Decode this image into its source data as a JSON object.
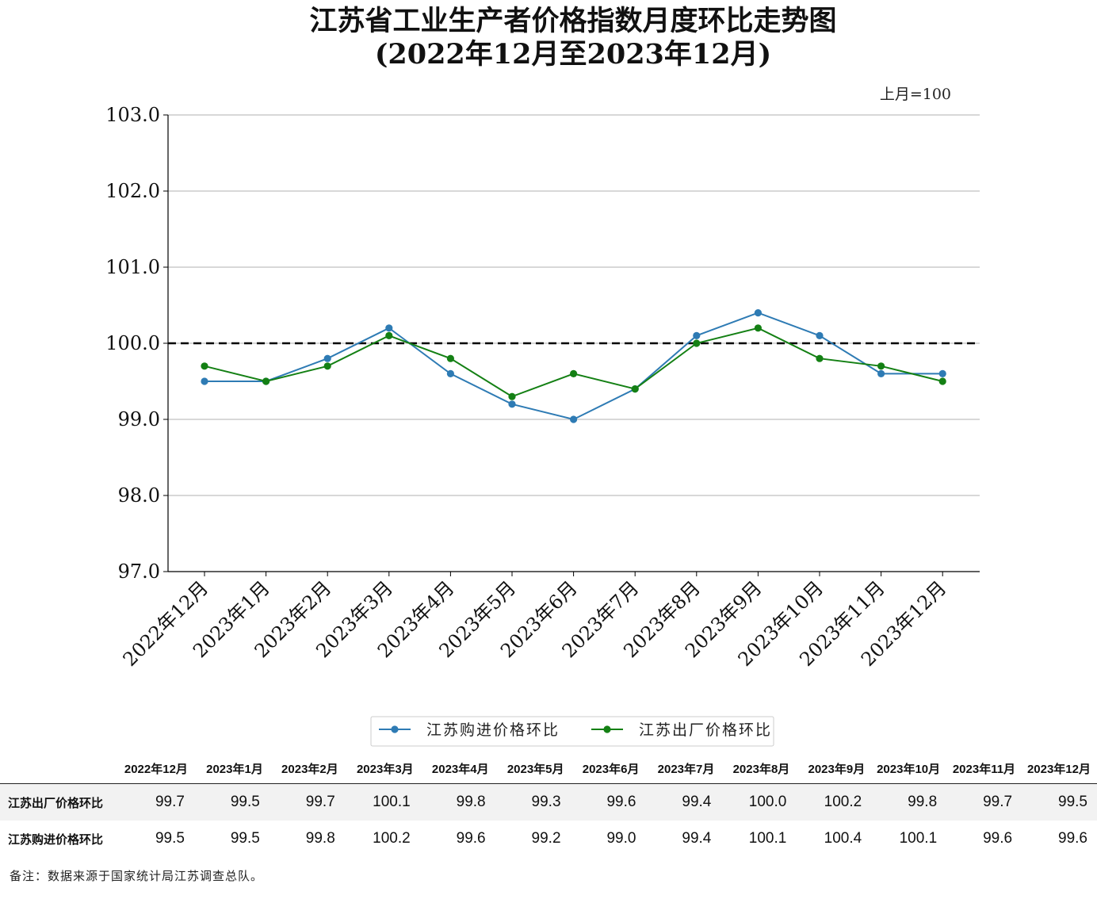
{
  "chart_data": {
    "type": "line",
    "title": "江苏省工业生产者价格指数月度环比走势图",
    "subtitle": "(2022年12月至2023年12月)",
    "unit_note": "上月=100",
    "ylim": [
      97.0,
      103.0
    ],
    "yticks": [
      "97.0",
      "98.0",
      "99.0",
      "100.0",
      "101.0",
      "102.0",
      "103.0"
    ],
    "grid": true,
    "reference_line": 100.0,
    "legend_position": "bottom-center",
    "categories": [
      "2022年12月",
      "2023年1月",
      "2023年2月",
      "2023年3月",
      "2023年4月",
      "2023年5月",
      "2023年6月",
      "2023年7月",
      "2023年8月",
      "2023年9月",
      "2023年10月",
      "2023年11月",
      "2023年12月"
    ],
    "series": [
      {
        "name": "江苏购进价格环比",
        "color": "#2e7bb4",
        "values": [
          99.5,
          99.5,
          99.8,
          100.2,
          99.6,
          99.2,
          99.0,
          99.4,
          100.1,
          100.4,
          100.1,
          99.6,
          99.6
        ]
      },
      {
        "name": "江苏出厂价格环比",
        "color": "#148014",
        "values": [
          99.7,
          99.5,
          99.7,
          100.1,
          99.8,
          99.3,
          99.6,
          99.4,
          100.0,
          100.2,
          99.8,
          99.7,
          99.5
        ]
      }
    ]
  },
  "table": {
    "rows": [
      {
        "label": "江苏出厂价格环比",
        "values": [
          "99.7",
          "99.5",
          "99.7",
          "100.1",
          "99.8",
          "99.3",
          "99.6",
          "99.4",
          "100.0",
          "100.2",
          "99.8",
          "99.7",
          "99.5"
        ]
      },
      {
        "label": "江苏购进价格环比",
        "values": [
          "99.5",
          "99.5",
          "99.8",
          "100.2",
          "99.6",
          "99.2",
          "99.0",
          "99.4",
          "100.1",
          "100.4",
          "100.1",
          "99.6",
          "99.6"
        ]
      }
    ]
  },
  "footnote": "备注：数据来源于国家统计局江苏调查总队。"
}
